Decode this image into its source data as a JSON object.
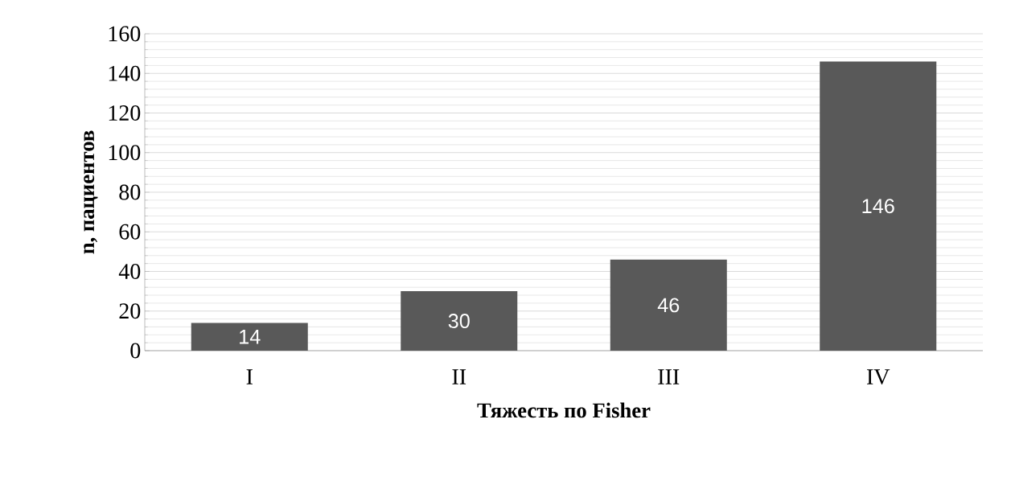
{
  "chart_data": {
    "type": "bar",
    "xlabel": "Тяжесть по Fisher",
    "ylabel": "n, пациентов",
    "categories": [
      "I",
      "II",
      "III",
      "IV"
    ],
    "values": [
      14,
      30,
      46,
      146
    ],
    "color": "#595959",
    "ylim": [
      0,
      160
    ],
    "yticks": [
      0,
      20,
      40,
      60,
      80,
      100,
      120,
      140,
      160
    ],
    "grid": "y",
    "data_labels": true
  }
}
